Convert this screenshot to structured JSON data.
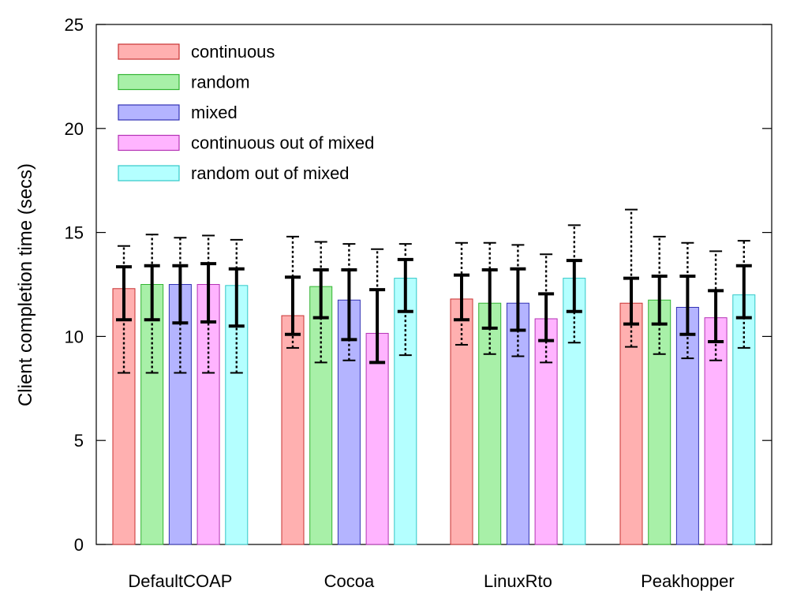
{
  "chart_data": {
    "type": "bar",
    "title": "",
    "xlabel": "",
    "ylabel": "Client completion time (secs)",
    "ylim": [
      0,
      25
    ],
    "yticks": [
      0,
      5,
      10,
      15,
      20,
      25
    ],
    "grid": false,
    "legend_position": "top-left",
    "categories": [
      "DefaultCOAP",
      "Cocoa",
      "LinuxRto",
      "Peakhopper"
    ],
    "series": [
      {
        "name": "continuous",
        "fill": "#ffb0b0",
        "stroke": "#c83232",
        "values": [
          12.3,
          11.0,
          11.8,
          11.6
        ],
        "iqr": [
          [
            10.8,
            13.35
          ],
          [
            10.1,
            12.85
          ],
          [
            10.8,
            12.95
          ],
          [
            10.6,
            12.8
          ]
        ],
        "range": [
          [
            8.25,
            14.35
          ],
          [
            9.45,
            14.8
          ],
          [
            9.6,
            14.5
          ],
          [
            9.5,
            16.1
          ]
        ]
      },
      {
        "name": "random",
        "fill": "#a8f0a8",
        "stroke": "#32b432",
        "values": [
          12.5,
          12.4,
          11.6,
          11.75
        ],
        "iqr": [
          [
            10.8,
            13.4
          ],
          [
            10.9,
            13.2
          ],
          [
            10.4,
            13.2
          ],
          [
            10.6,
            12.9
          ]
        ],
        "range": [
          [
            8.25,
            14.9
          ],
          [
            8.75,
            14.55
          ],
          [
            9.15,
            14.5
          ],
          [
            9.15,
            14.8
          ]
        ]
      },
      {
        "name": "mixed",
        "fill": "#b4b4ff",
        "stroke": "#3232b4",
        "values": [
          12.5,
          11.75,
          11.6,
          11.4
        ],
        "iqr": [
          [
            10.65,
            13.4
          ],
          [
            9.85,
            13.2
          ],
          [
            10.3,
            13.25
          ],
          [
            10.1,
            12.9
          ]
        ],
        "range": [
          [
            8.25,
            14.75
          ],
          [
            8.85,
            14.45
          ],
          [
            9.05,
            14.4
          ],
          [
            8.95,
            14.5
          ]
        ]
      },
      {
        "name": "continuous out of mixed",
        "fill": "#ffb4ff",
        "stroke": "#b432b4",
        "values": [
          12.5,
          10.15,
          10.85,
          10.9
        ],
        "iqr": [
          [
            10.7,
            13.5
          ],
          [
            8.75,
            12.25
          ],
          [
            9.8,
            12.05
          ],
          [
            9.75,
            12.2
          ]
        ],
        "range": [
          [
            8.25,
            14.85
          ],
          [
            8.75,
            14.2
          ],
          [
            8.75,
            13.95
          ],
          [
            8.85,
            14.1
          ]
        ]
      },
      {
        "name": "random out of mixed",
        "fill": "#b4ffff",
        "stroke": "#32c8c8",
        "values": [
          12.45,
          12.8,
          12.8,
          12.0
        ],
        "iqr": [
          [
            10.5,
            13.25
          ],
          [
            11.2,
            13.7
          ],
          [
            11.2,
            13.65
          ],
          [
            10.9,
            13.4
          ]
        ],
        "range": [
          [
            8.25,
            14.65
          ],
          [
            9.1,
            14.45
          ],
          [
            9.7,
            15.35
          ],
          [
            9.45,
            14.6
          ]
        ]
      }
    ]
  }
}
